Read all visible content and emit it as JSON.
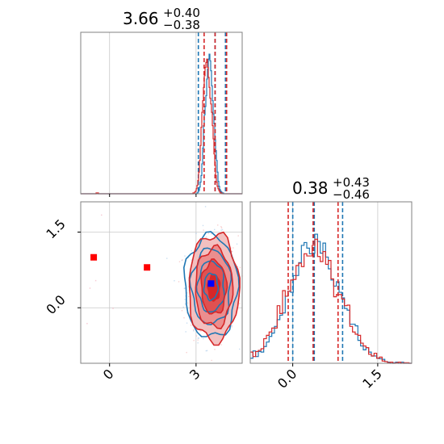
{
  "colors": {
    "blue": "#1f77b4",
    "red": "#d62728",
    "grid": "#c8c8c8",
    "axis": "#808080"
  },
  "chart_data": [
    {
      "type": "histogram",
      "panel": "top-left",
      "parameter": 1,
      "title_value": "3.66",
      "title_plus": "+0.40",
      "title_minus": "−0.38",
      "xlim": [
        -1.0,
        4.6
      ],
      "grid": true,
      "bins_x": [
        -1.0,
        4.6
      ],
      "series": [
        {
          "color": "#1f77b4",
          "counts": [
            0,
            0,
            0,
            0,
            0,
            0,
            0,
            0,
            0,
            0,
            0,
            0,
            0,
            0,
            0,
            0,
            0,
            0,
            0,
            0,
            0,
            0,
            0,
            0,
            0,
            0,
            0,
            0,
            0,
            0,
            0,
            0,
            0,
            0,
            0,
            0,
            0,
            0,
            0,
            0,
            0,
            0,
            0,
            0,
            0,
            0,
            0,
            0,
            0,
            0,
            0,
            0,
            0,
            0,
            0,
            0,
            0,
            0,
            0,
            0,
            0,
            0,
            0,
            0,
            0,
            0,
            0,
            0,
            0,
            0,
            0,
            0,
            0,
            0,
            0,
            0,
            0,
            0,
            0,
            0,
            0,
            0,
            0,
            0,
            0,
            0,
            0,
            0,
            0,
            0,
            0,
            0,
            0,
            0,
            0,
            0,
            0,
            0,
            0,
            0,
            0,
            0,
            0,
            0,
            0,
            0,
            0,
            0,
            0,
            0,
            0,
            0,
            0,
            0,
            0,
            0,
            0,
            0,
            0,
            0,
            0,
            0,
            0,
            0,
            0,
            0,
            0,
            0,
            0,
            0,
            0,
            0,
            0,
            0,
            0,
            0,
            0,
            0,
            0,
            0,
            0,
            0,
            0,
            0,
            1,
            2,
            4,
            8,
            14,
            22,
            36,
            55,
            82,
            95,
            105,
            118,
            138,
            150,
            162,
            168,
            160,
            148,
            130,
            112,
            96,
            84,
            65,
            52,
            40,
            26,
            15,
            9,
            5,
            3,
            2,
            1,
            1,
            0,
            0,
            0,
            0,
            0,
            0,
            0,
            0,
            0,
            0,
            0,
            0,
            0,
            0,
            0,
            0,
            0,
            0,
            0,
            0,
            0,
            0,
            0
          ],
          "quantile_lines": [
            3.08,
            3.66,
            4.02
          ]
        },
        {
          "color": "#d62728",
          "counts": [
            0,
            0,
            0,
            0,
            0,
            0,
            0,
            0,
            0,
            0,
            0,
            0,
            0,
            0,
            0,
            0,
            0,
            0,
            0,
            1,
            1,
            1,
            0,
            0,
            0,
            0,
            0,
            0,
            0,
            0,
            0,
            0,
            0,
            0,
            0,
            0,
            0,
            0,
            0,
            0,
            0,
            0,
            0,
            0,
            0,
            0,
            0,
            0,
            0,
            0,
            0,
            0,
            0,
            0,
            0,
            0,
            0,
            0,
            0,
            0,
            0,
            0,
            0,
            0,
            0,
            0,
            0,
            0,
            0,
            0,
            0,
            0,
            0,
            0,
            0,
            0,
            0,
            0,
            0,
            0,
            0,
            0,
            0,
            0,
            0,
            0,
            0,
            0,
            0,
            0,
            0,
            0,
            0,
            0,
            0,
            0,
            0,
            0,
            0,
            0,
            0,
            0,
            0,
            0,
            0,
            0,
            0,
            0,
            0,
            0,
            0,
            0,
            0,
            0,
            0,
            0,
            0,
            0,
            0,
            0,
            0,
            0,
            0,
            0,
            0,
            0,
            0,
            0,
            0,
            0,
            0,
            0,
            0,
            0,
            0,
            0,
            0,
            0,
            0,
            1,
            1,
            2,
            3,
            6,
            10,
            16,
            26,
            40,
            58,
            80,
            98,
            112,
            128,
            142,
            152,
            158,
            162,
            152,
            140,
            128,
            115,
            108,
            98,
            82,
            66,
            48,
            34,
            22,
            14,
            9,
            6,
            4,
            2,
            1,
            1,
            0,
            0,
            0,
            0,
            0,
            0,
            0,
            0,
            0,
            0,
            0,
            0,
            0,
            0,
            0,
            0,
            0,
            0,
            0,
            0,
            0,
            0,
            0,
            0,
            0
          ],
          "quantile_lines": [
            3.28,
            3.66,
            4.06
          ]
        }
      ]
    },
    {
      "type": "contour-scatter",
      "panel": "bottom-left",
      "xlim": [
        -1.0,
        4.6
      ],
      "ylim": [
        -1.1,
        2.1
      ],
      "xticks": [
        {
          "v": 0,
          "label": "0"
        },
        {
          "v": 3,
          "label": "3"
        }
      ],
      "yticks": [
        {
          "v": 1.5,
          "label": "1.5"
        },
        {
          "v": 0.0,
          "label": "0.0"
        }
      ],
      "grid": true,
      "red_points": [
        [
          -0.55,
          1.0
        ],
        [
          1.3,
          0.8
        ]
      ],
      "blue_points": [
        [
          3.52,
          0.48
        ]
      ],
      "series": [
        {
          "color": "#1f77b4",
          "center": [
            3.52,
            0.42
          ],
          "sx": 0.4,
          "sy": 0.44
        },
        {
          "color": "#d62728",
          "center": [
            3.62,
            0.4
          ],
          "sx": 0.38,
          "sy": 0.46
        }
      ]
    },
    {
      "type": "histogram",
      "panel": "bottom-right",
      "parameter": 2,
      "title_value": "0.38",
      "title_plus": "+0.43",
      "title_minus": "−0.46",
      "xlim": [
        -0.75,
        2.1
      ],
      "xticks": [
        {
          "v": 0.0,
          "label": "0.0"
        },
        {
          "v": 1.5,
          "label": "1.5"
        }
      ],
      "grid": true,
      "series": [
        {
          "color": "#1f77b4",
          "center": 0.38,
          "sigma": 0.44,
          "quantile_lines": [
            0.0,
            0.38,
            0.88
          ]
        },
        {
          "color": "#d62728",
          "center": 0.36,
          "sigma": 0.46,
          "quantile_lines": [
            -0.08,
            0.36,
            0.8
          ]
        }
      ]
    }
  ]
}
